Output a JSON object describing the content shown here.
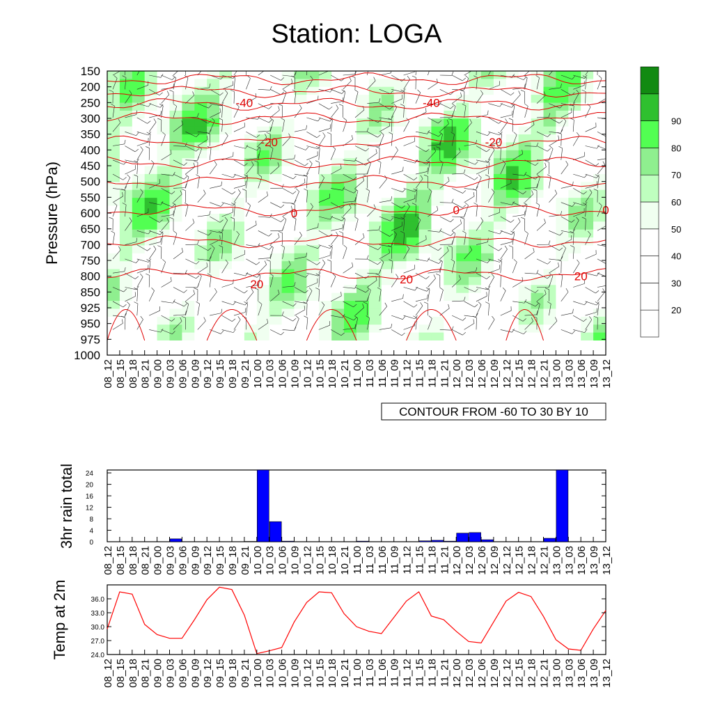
{
  "title": "Station: LOGA",
  "time_labels": [
    "08_12",
    "08_15",
    "08_18",
    "08_21",
    "09_00",
    "09_03",
    "09_06",
    "09_09",
    "09_12",
    "09_15",
    "09_18",
    "09_21",
    "10_00",
    "10_03",
    "10_06",
    "10_09",
    "10_12",
    "10_15",
    "10_18",
    "10_21",
    "11_00",
    "11_03",
    "11_06",
    "11_09",
    "11_12",
    "11_15",
    "11_18",
    "11_21",
    "12_00",
    "12_03",
    "12_06",
    "12_09",
    "12_12",
    "12_15",
    "12_18",
    "12_21",
    "13_00",
    "13_03",
    "13_06",
    "13_09",
    "13_12"
  ],
  "colors": {
    "green_levels": [
      "#ffffff",
      "#ffffff",
      "#ffffff",
      "#ffffff",
      "#f0fff0",
      "#bfffbf",
      "#8fef8f",
      "#52ff52",
      "#2fc02f",
      "#128a12"
    ],
    "temperature_contour": "#e00000",
    "bar_fill": "#0000ff",
    "line": "#ff0000"
  },
  "chart_data": [
    {
      "type": "heatmap",
      "name": "",
      "ylabel": "Pressure (hPa)",
      "y_ticks": [
        150,
        200,
        250,
        300,
        350,
        400,
        450,
        500,
        550,
        600,
        650,
        700,
        750,
        800,
        850,
        925,
        950,
        975,
        1000
      ],
      "fill_variable_levels": [
        20,
        30,
        40,
        50,
        60,
        70,
        80,
        90
      ],
      "legend_labels": [
        "20",
        "30",
        "40",
        "50",
        "60",
        "70",
        "80",
        "90"
      ],
      "contour_note": "CONTOUR FROM -60 TO 30 BY 10",
      "contour_labels": [
        {
          "text": "-40",
          "t": 11,
          "p": 250
        },
        {
          "text": "-40",
          "t": 26,
          "p": 250
        },
        {
          "text": "-20",
          "t": 13,
          "p": 375
        },
        {
          "text": "-20",
          "t": 31,
          "p": 375
        },
        {
          "text": "0",
          "t": 15,
          "p": 600
        },
        {
          "text": "0",
          "t": 28,
          "p": 590
        },
        {
          "text": "0",
          "t": 40,
          "p": 590
        },
        {
          "text": "20",
          "t": 12,
          "p": 825
        },
        {
          "text": "20",
          "t": 24,
          "p": 810
        },
        {
          "text": "20",
          "t": 38,
          "p": 800
        }
      ]
    },
    {
      "type": "bar",
      "ylabel": "3hr rain total",
      "ylim": [
        0,
        25
      ],
      "y_ticks": [
        0,
        4,
        8,
        12,
        16,
        20,
        24
      ],
      "values": [
        0,
        0,
        0,
        0,
        0,
        1.0,
        0,
        0,
        0,
        0,
        0,
        0.1,
        25,
        7,
        0.2,
        0,
        0,
        0,
        0,
        0,
        0.2,
        0,
        0,
        0,
        0,
        0.3,
        0.5,
        0.2,
        3.0,
        3.2,
        0.7,
        0,
        0,
        0,
        0,
        1.2,
        25,
        0,
        0,
        0,
        0
      ]
    },
    {
      "type": "line",
      "ylabel": "Temp at 2m",
      "ylim": [
        24,
        39
      ],
      "y_ticks": [
        "24.0",
        "27.0",
        "30.0",
        "33.0",
        "36.0"
      ],
      "values": [
        29.5,
        37.5,
        37.0,
        30.5,
        28.3,
        27.5,
        27.5,
        31.5,
        35.8,
        38.5,
        38.0,
        32.5,
        24.2,
        24.8,
        25.5,
        31.0,
        35.2,
        37.5,
        37.3,
        32.8,
        30.0,
        29.0,
        28.5,
        32.0,
        35.5,
        37.5,
        32.3,
        31.5,
        29.0,
        26.8,
        26.5,
        31.0,
        35.5,
        37.4,
        36.5,
        32.2,
        27.2,
        25.2,
        24.9,
        29.5,
        33.5
      ]
    }
  ]
}
